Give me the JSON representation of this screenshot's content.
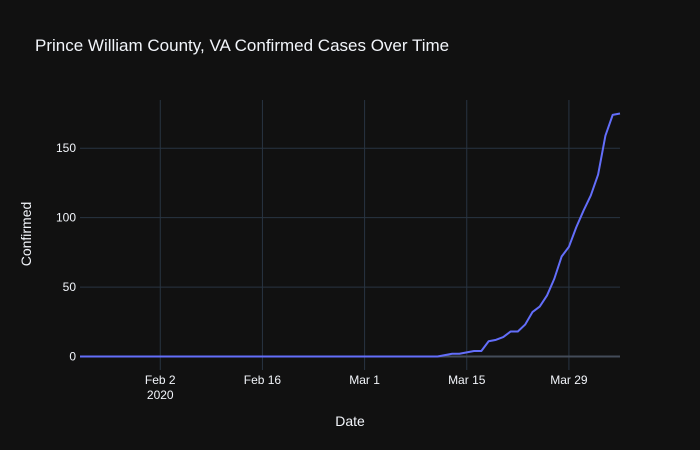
{
  "chart_data": {
    "type": "line",
    "title": "Prince William County, VA Confirmed Cases Over Time",
    "xlabel": "Date",
    "ylabel": "Confirmed",
    "x_range": [
      "2020-01-22",
      "2020-04-05"
    ],
    "ylim": [
      -9.7,
      184.7
    ],
    "grid": true,
    "legend": "none",
    "x_ticks": [
      {
        "date": "2020-02-02",
        "label": "Feb 2",
        "sublabel": "2020"
      },
      {
        "date": "2020-02-16",
        "label": "Feb 16",
        "sublabel": ""
      },
      {
        "date": "2020-03-01",
        "label": "Mar 1",
        "sublabel": ""
      },
      {
        "date": "2020-03-15",
        "label": "Mar 15",
        "sublabel": ""
      },
      {
        "date": "2020-03-29",
        "label": "Mar 29",
        "sublabel": ""
      }
    ],
    "y_ticks": [
      0,
      50,
      100,
      150
    ],
    "series": [
      {
        "color": "#636efa",
        "x": [
          "2020-01-22",
          "2020-03-11",
          "2020-03-12",
          "2020-03-13",
          "2020-03-14",
          "2020-03-15",
          "2020-03-16",
          "2020-03-17",
          "2020-03-18",
          "2020-03-19",
          "2020-03-20",
          "2020-03-21",
          "2020-03-22",
          "2020-03-23",
          "2020-03-24",
          "2020-03-25",
          "2020-03-26",
          "2020-03-27",
          "2020-03-28",
          "2020-03-29",
          "2020-03-30",
          "2020-03-31",
          "2020-04-01",
          "2020-04-02",
          "2020-04-03",
          "2020-04-04",
          "2020-04-05"
        ],
        "y": [
          0,
          0,
          1,
          2,
          2,
          3,
          4,
          4,
          11,
          12,
          14,
          18,
          18,
          23,
          32,
          36,
          44,
          56,
          72,
          79,
          93,
          105,
          116,
          131,
          159,
          174,
          175
        ]
      }
    ]
  },
  "colors": {
    "background": "#111111",
    "grid": "#283442",
    "zeroline": "#444c59",
    "text": "#f2f5fa",
    "line": "#636efa"
  }
}
